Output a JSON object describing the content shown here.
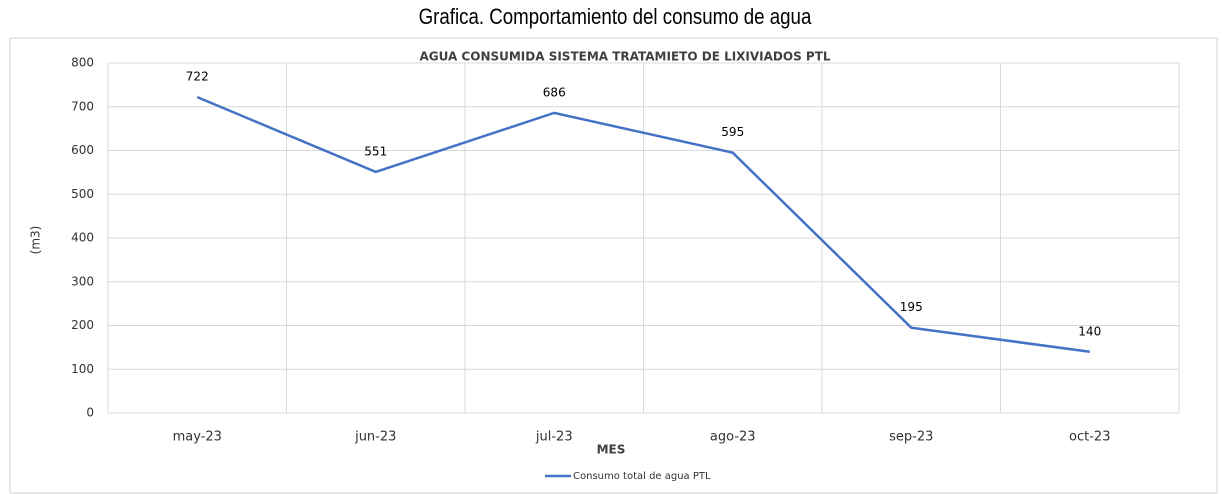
{
  "chart_data": {
    "type": "line",
    "caption": "Grafica. Comportamiento del consumo de agua",
    "title": "AGUA CONSUMIDA SISTEMA TRATAMIETO DE LIXIVIADOS PTL",
    "x_label": "MES",
    "y_label": "(m3)",
    "categories": [
      "may-23",
      "jun-23",
      "jul-23",
      "ago-23",
      "sep-23",
      "oct-23"
    ],
    "series": [
      {
        "name": "Consumo total de agua PTL",
        "color": "#4472c4",
        "values": [
          722,
          551,
          686,
          595,
          195,
          140
        ]
      }
    ],
    "ylim": [
      0,
      800
    ],
    "yticks": [
      0,
      100,
      200,
      300,
      400,
      500,
      600,
      700,
      800
    ],
    "grid": true,
    "legend": "bottom"
  }
}
